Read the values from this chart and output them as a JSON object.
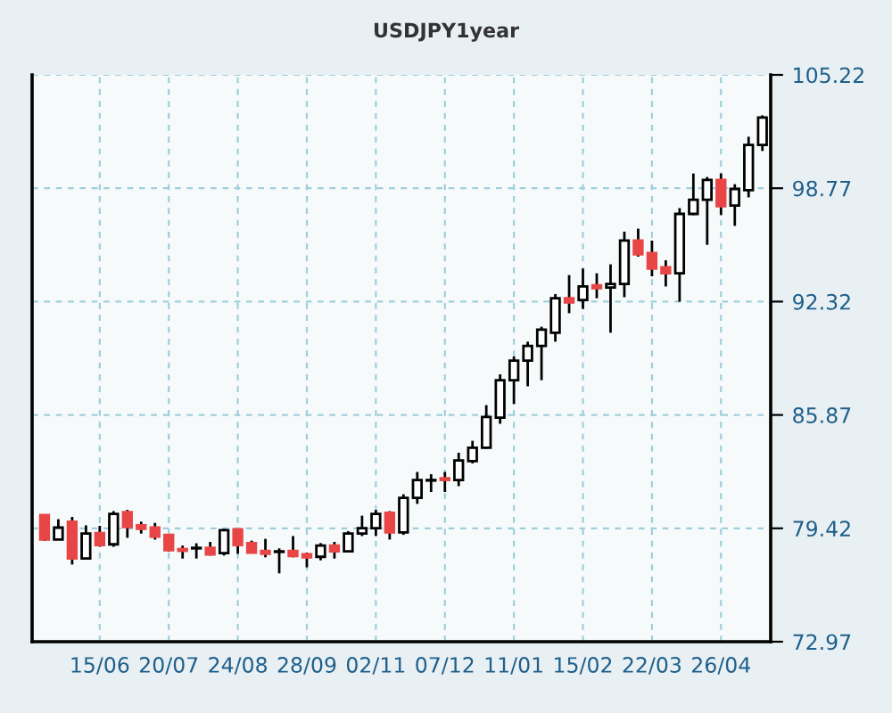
{
  "chart_data": {
    "type": "candlestick",
    "title": "USDJPY1year",
    "categories": [
      null,
      null,
      null,
      null,
      "15/06",
      null,
      null,
      null,
      null,
      "20/07",
      null,
      null,
      null,
      null,
      "24/08",
      null,
      null,
      null,
      null,
      "28/09",
      null,
      null,
      null,
      null,
      "02/11",
      null,
      null,
      null,
      null,
      "07/12",
      null,
      null,
      null,
      null,
      "11/01",
      null,
      null,
      null,
      null,
      "15/02",
      null,
      null,
      null,
      null,
      "22/03",
      null,
      null,
      null,
      null,
      "26/04",
      null,
      null,
      null
    ],
    "ohlc": [
      [
        80.17,
        80.2,
        78.7,
        78.78
      ],
      [
        78.78,
        79.94,
        78.75,
        79.46
      ],
      [
        79.8,
        80.07,
        77.36,
        77.7
      ],
      [
        77.7,
        79.59,
        77.7,
        79.12
      ],
      [
        79.15,
        79.56,
        78.37,
        78.47
      ],
      [
        78.51,
        80.4,
        78.37,
        80.24
      ],
      [
        80.34,
        80.47,
        78.88,
        79.49
      ],
      [
        79.59,
        79.8,
        79.12,
        79.39
      ],
      [
        79.46,
        79.73,
        78.78,
        78.95
      ],
      [
        79.05,
        79.1,
        78.1,
        78.17
      ],
      [
        78.24,
        78.44,
        77.7,
        78.14
      ],
      [
        78.28,
        78.57,
        77.7,
        78.31
      ],
      [
        78.31,
        78.65,
        77.87,
        77.94
      ],
      [
        78.01,
        79.39,
        77.87,
        79.32
      ],
      [
        79.36,
        79.36,
        77.97,
        78.47
      ],
      [
        78.58,
        78.72,
        78.01,
        78.04
      ],
      [
        78.14,
        78.82,
        77.77,
        77.97
      ],
      [
        78.08,
        78.28,
        76.86,
        78.11
      ],
      [
        78.14,
        78.98,
        77.77,
        77.84
      ],
      [
        77.94,
        78.04,
        77.2,
        77.77
      ],
      [
        77.8,
        78.58,
        77.6,
        78.44
      ],
      [
        78.44,
        78.65,
        77.7,
        78.11
      ],
      [
        78.11,
        79.26,
        78.08,
        79.12
      ],
      [
        79.12,
        80.14,
        78.98,
        79.43
      ],
      [
        79.43,
        80.47,
        78.98,
        80.24
      ],
      [
        80.3,
        80.4,
        78.78,
        79.19
      ],
      [
        79.19,
        81.36,
        79.05,
        81.15
      ],
      [
        81.15,
        82.63,
        80.81,
        82.17
      ],
      [
        82.14,
        82.5,
        81.49,
        82.17
      ],
      [
        82.27,
        82.63,
        81.49,
        82.17
      ],
      [
        82.17,
        83.72,
        81.82,
        83.28
      ],
      [
        83.24,
        84.4,
        83.11,
        84.0
      ],
      [
        84.0,
        86.43,
        83.95,
        85.75
      ],
      [
        85.72,
        88.18,
        85.37,
        87.85
      ],
      [
        87.85,
        89.2,
        86.49,
        88.96
      ],
      [
        88.96,
        90.04,
        87.5,
        89.8
      ],
      [
        89.8,
        90.89,
        87.85,
        90.72
      ],
      [
        90.55,
        92.75,
        90.04,
        92.51
      ],
      [
        92.51,
        93.83,
        91.66,
        92.27
      ],
      [
        92.41,
        94.2,
        91.9,
        93.18
      ],
      [
        93.25,
        93.93,
        92.51,
        93.08
      ],
      [
        93.12,
        94.44,
        90.55,
        93.32
      ],
      [
        93.32,
        96.3,
        92.57,
        95.79
      ],
      [
        95.79,
        96.47,
        94.88,
        95.01
      ],
      [
        95.08,
        95.79,
        93.76,
        94.2
      ],
      [
        94.27,
        94.67,
        93.18,
        93.93
      ],
      [
        93.93,
        97.64,
        92.31,
        97.31
      ],
      [
        97.31,
        99.61,
        97.24,
        98.12
      ],
      [
        98.12,
        99.41,
        95.55,
        99.24
      ],
      [
        99.24,
        99.61,
        97.24,
        97.75
      ],
      [
        97.79,
        99.0,
        96.63,
        98.73
      ],
      [
        98.66,
        101.7,
        98.25,
        101.23
      ],
      [
        101.23,
        102.92,
        100.89,
        102.79
      ]
    ],
    "colors": [
      "#e84646",
      "#ffffff",
      "#e84646",
      "#ffffff",
      "#e84646",
      "#ffffff",
      "#e84646",
      "#e84646",
      "#e84646",
      "#e84646",
      "#e84646",
      "#ffffff",
      "#e84646",
      "#ffffff",
      "#e84646",
      "#e84646",
      "#e84646",
      "#ffffff",
      "#e84646",
      "#e84646",
      "#ffffff",
      "#e84646",
      "#ffffff",
      "#ffffff",
      "#ffffff",
      "#e84646",
      "#ffffff",
      "#ffffff",
      "#ffffff",
      "#e84646",
      "#ffffff",
      "#ffffff",
      "#ffffff",
      "#ffffff",
      "#ffffff",
      "#ffffff",
      "#ffffff",
      "#ffffff",
      "#e84646",
      "#ffffff",
      "#e84646",
      "#ffffff",
      "#ffffff",
      "#e84646",
      "#e84646",
      "#e84646",
      "#ffffff",
      "#ffffff",
      "#ffffff",
      "#e84646",
      "#ffffff",
      "#ffffff",
      "#ffffff"
    ],
    "ylim": [
      72.97,
      105.22
    ],
    "yticks": [
      72.97,
      79.42,
      85.87,
      92.32,
      98.77,
      105.22
    ],
    "grid": true
  }
}
